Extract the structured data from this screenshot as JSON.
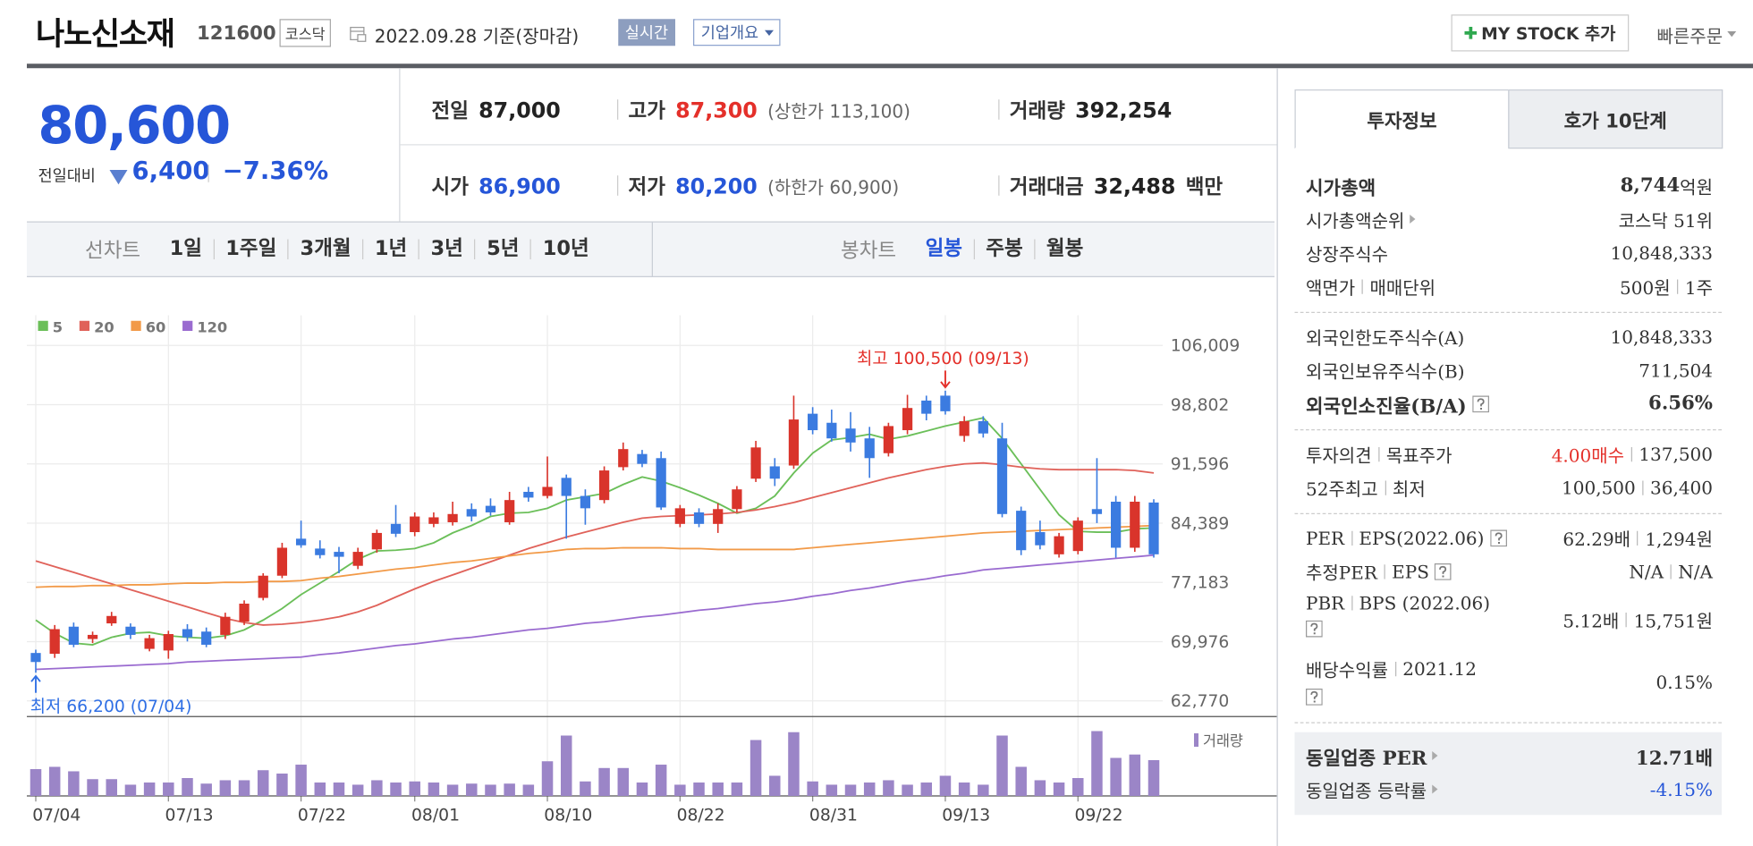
{
  "header": {
    "name": "나노신소재",
    "code": "121600",
    "market": "코스닥",
    "date": "2022.09.28 기준(장마감)",
    "realtime": "실시간",
    "company_info": "기업개요",
    "my_stock": "MY STOCK 추가",
    "quick_order": "빠른주문"
  },
  "price": {
    "current": "80,600",
    "change_label": "전일대비",
    "change": "6,400",
    "rate": "−7.36%"
  },
  "quotes": [
    {
      "label": "전일",
      "value": "87,000",
      "color": "#222222"
    },
    {
      "label": "고가",
      "value": "87,300",
      "color": "#e4302a",
      "limit": "(상한가 113,100)"
    },
    {
      "label": "거래량",
      "value": "392,254",
      "color": "#222222"
    },
    {
      "label": "시가",
      "value": "86,900",
      "color": "#2656d8"
    },
    {
      "label": "저가",
      "value": "80,200",
      "color": "#2656d8",
      "limit": "(하한가 60,900)"
    },
    {
      "label": "거래대금",
      "value": "32,488",
      "color": "#222222",
      "unit": "백만"
    }
  ],
  "chart_tabs": {
    "line_chart": {
      "label": "선차트",
      "periods": [
        "1일",
        "1주일",
        "3개월",
        "1년",
        "3년",
        "5년",
        "10년"
      ]
    },
    "candle_chart": {
      "label": "봉차트",
      "periods": [
        "일봉",
        "주봉",
        "월봉"
      ],
      "active": 0
    }
  },
  "chart_data": {
    "type": "candlestick",
    "categories": [
      "07/04",
      null,
      null,
      null,
      null,
      null,
      null,
      "07/13",
      null,
      null,
      null,
      null,
      null,
      null,
      "07/22",
      null,
      null,
      null,
      null,
      null,
      "08/01",
      null,
      null,
      null,
      null,
      null,
      null,
      "08/10",
      null,
      null,
      null,
      null,
      null,
      null,
      "08/22",
      null,
      null,
      null,
      null,
      null,
      null,
      "08/31",
      null,
      null,
      null,
      null,
      null,
      null,
      "09/13",
      null,
      null,
      null,
      null,
      null,
      null,
      "09/22",
      null,
      null,
      null,
      null
    ],
    "open": [
      68600,
      68500,
      71800,
      70300,
      72200,
      71800,
      69100,
      68900,
      71500,
      71200,
      70800,
      72400,
      75300,
      78000,
      82500,
      81300,
      80900,
      79200,
      81200,
      84300,
      83300,
      84300,
      84500,
      86100,
      86500,
      84500,
      88200,
      87700,
      89900,
      87700,
      87200,
      91200,
      92800,
      92300,
      84300,
      85700,
      84300,
      86100,
      89800,
      91300,
      91400,
      97700,
      96600,
      95900,
      94700,
      92900,
      95700,
      99300,
      99900,
      95000,
      96800,
      94700,
      85900,
      83300,
      80600,
      81000,
      86100,
      87000,
      81400,
      86900
    ],
    "high": [
      69000,
      72000,
      72300,
      71200,
      73600,
      72200,
      70800,
      71300,
      72100,
      71700,
      73500,
      75000,
      78300,
      82000,
      84700,
      82300,
      81500,
      81400,
      83600,
      86600,
      85700,
      85700,
      87000,
      86800,
      87400,
      88200,
      88800,
      92500,
      90300,
      88500,
      91300,
      94200,
      93300,
      93100,
      86600,
      86200,
      86800,
      88900,
      94400,
      92300,
      99900,
      98500,
      98200,
      97900,
      96100,
      96600,
      100000,
      99900,
      100500,
      97400,
      97400,
      96600,
      86400,
      84700,
      83200,
      85100,
      92300,
      87700,
      87700,
      87300
    ],
    "low": [
      66200,
      68000,
      69300,
      69800,
      71900,
      70300,
      68800,
      67900,
      70000,
      69300,
      70300,
      72000,
      75000,
      77700,
      81400,
      80100,
      78300,
      78800,
      80800,
      82700,
      82800,
      83900,
      84100,
      84600,
      85300,
      84200,
      87000,
      87400,
      82500,
      84200,
      86800,
      90800,
      91200,
      86000,
      83900,
      83900,
      83200,
      85700,
      89400,
      88900,
      91000,
      95200,
      94300,
      93100,
      89900,
      92500,
      95200,
      96900,
      97600,
      94300,
      94800,
      85100,
      80500,
      81200,
      80200,
      80600,
      84400,
      80200,
      80900,
      80200
    ],
    "close": [
      67500,
      71500,
      69600,
      70800,
      73100,
      70800,
      70400,
      70900,
      70500,
      69600,
      73000,
      74600,
      78000,
      81400,
      81700,
      80500,
      80300,
      80900,
      83200,
      83100,
      85200,
      85100,
      85500,
      85200,
      85700,
      87200,
      87500,
      88800,
      87700,
      86200,
      90800,
      93400,
      91600,
      86300,
      86200,
      84300,
      86100,
      88500,
      93600,
      89800,
      97000,
      95700,
      94700,
      94200,
      92300,
      96200,
      98400,
      97700,
      98000,
      96800,
      95300,
      85500,
      81100,
      81700,
      82800,
      84700,
      85500,
      81400,
      87000,
      80600
    ],
    "up_color": "#d9342b",
    "down_color": "#3b7be0",
    "ylim": [
      62770,
      106009
    ],
    "yticks": [
      {
        "value": 62770,
        "label": "62,770"
      },
      {
        "value": 69976,
        "label": "69,976"
      },
      {
        "value": 77183,
        "label": "77,183"
      },
      {
        "value": 84389,
        "label": "84,389"
      },
      {
        "value": 91596,
        "label": "91,596"
      },
      {
        "value": 98802,
        "label": "98,802"
      },
      {
        "value": 106009,
        "label": "106,009"
      }
    ],
    "grid": true,
    "moving_averages": [
      {
        "name": "5",
        "color": "#6bbf59",
        "values": [
          72600,
          71000,
          69800,
          69600,
          70500,
          71000,
          71100,
          70700,
          70500,
          70400,
          70700,
          71400,
          72600,
          74000,
          75700,
          77100,
          78500,
          80000,
          81000,
          81100,
          81300,
          82000,
          83200,
          84100,
          85200,
          85600,
          85700,
          86200,
          87200,
          87600,
          88000,
          89100,
          90000,
          89500,
          88700,
          87800,
          86800,
          85600,
          86200,
          87700,
          90500,
          92900,
          94500,
          94800,
          95200,
          94600,
          95000,
          95600,
          96200,
          96700,
          97200,
          94700,
          91600,
          88500,
          85400,
          83400,
          83300,
          83300,
          83700,
          83800
        ]
      },
      {
        "name": "20",
        "color": "#e0625a",
        "values": [
          79800,
          79100,
          78400,
          77700,
          77000,
          76300,
          75600,
          74900,
          74200,
          73500,
          72800,
          72300,
          72000,
          72100,
          72300,
          72600,
          73000,
          73600,
          74400,
          75400,
          76400,
          77300,
          78100,
          78900,
          79700,
          80500,
          81300,
          82000,
          82700,
          83300,
          83900,
          84500,
          85000,
          85200,
          85300,
          85400,
          85500,
          85700,
          86000,
          86400,
          86900,
          87500,
          88100,
          88700,
          89300,
          89900,
          90400,
          90900,
          91300,
          91600,
          91700,
          91500,
          91200,
          91000,
          90900,
          90900,
          90900,
          90900,
          90800,
          90500
        ]
      },
      {
        "name": "60",
        "color": "#f29a48",
        "values": [
          76600,
          76700,
          76700,
          76800,
          76800,
          76900,
          76900,
          77000,
          77100,
          77100,
          77200,
          77200,
          77300,
          77300,
          77400,
          77700,
          77900,
          78200,
          78500,
          78800,
          79000,
          79300,
          79600,
          79800,
          80100,
          80400,
          80700,
          80900,
          81200,
          81300,
          81300,
          81400,
          81400,
          81400,
          81300,
          81300,
          81200,
          81200,
          81200,
          81200,
          81200,
          81400,
          81600,
          81800,
          82000,
          82200,
          82400,
          82600,
          82800,
          83000,
          83200,
          83300,
          83400,
          83500,
          83600,
          83700,
          83800,
          83900,
          84000,
          84100
        ]
      },
      {
        "name": "120",
        "color": "#9a6bd0",
        "values": [
          66600,
          66700,
          66800,
          66900,
          67000,
          67100,
          67200,
          67300,
          67500,
          67600,
          67700,
          67800,
          67900,
          68000,
          68100,
          68400,
          68600,
          68900,
          69200,
          69500,
          69700,
          70000,
          70300,
          70500,
          70800,
          71100,
          71400,
          71600,
          71900,
          72200,
          72400,
          72700,
          73000,
          73200,
          73500,
          73800,
          74000,
          74300,
          74600,
          74800,
          75100,
          75500,
          75800,
          76200,
          76500,
          76900,
          77300,
          77600,
          78000,
          78300,
          78700,
          78900,
          79100,
          79300,
          79500,
          79700,
          79900,
          80100,
          80300,
          80500
        ]
      }
    ],
    "volume": {
      "name": "거래량",
      "color": "#9b85c7",
      "values": [
        294000,
        319000,
        270000,
        184000,
        184000,
        123000,
        147000,
        147000,
        196000,
        135000,
        172000,
        172000,
        282000,
        245000,
        343000,
        147000,
        147000,
        123000,
        172000,
        147000,
        159000,
        147000,
        123000,
        135000,
        123000,
        135000,
        123000,
        380000,
        662000,
        159000,
        306000,
        306000,
        147000,
        343000,
        123000,
        147000,
        147000,
        147000,
        613000,
        221000,
        699000,
        159000,
        123000,
        123000,
        147000,
        172000,
        123000,
        147000,
        221000,
        147000,
        123000,
        662000,
        319000,
        172000,
        147000,
        196000,
        711000,
        417000,
        454000,
        392254
      ]
    },
    "max_label": {
      "text": "최고 100,500 (09/13)",
      "color": "#e4302a"
    },
    "min_label": {
      "text": "최저 66,200 (07/04)",
      "color": "#2f6fe4"
    }
  },
  "invest_panel": {
    "tabs": [
      "투자정보",
      "호가 10단계"
    ],
    "sections": [
      {
        "rows": [
          {
            "label": [
              "시가총액"
            ],
            "value": [
              "8,744"
            ],
            "unit": "억원",
            "bold": true
          },
          {
            "label": [
              "시가총액순위"
            ],
            "arrow": true,
            "value": [
              "코스닥 51위"
            ]
          },
          {
            "label": [
              "상장주식수"
            ],
            "value": [
              "10,848,333"
            ]
          },
          {
            "label": [
              "액면가",
              "매매단위"
            ],
            "value": [
              "500원",
              "1주"
            ]
          }
        ]
      },
      {
        "rows": [
          {
            "label": [
              "외국인한도주식수(A)"
            ],
            "value": [
              "10,848,333"
            ]
          },
          {
            "label": [
              "외국인보유주식수(B)"
            ],
            "value": [
              "711,504"
            ]
          },
          {
            "label": [
              "외국인소진율(B/A)"
            ],
            "help": "inline",
            "value": [
              "6.56%"
            ],
            "bold": true
          }
        ]
      },
      {
        "rows": [
          {
            "label": [
              "투자의견",
              "목표주가"
            ],
            "value": [
              "4.00매수",
              "137,500"
            ],
            "value_color": "#e4302a"
          },
          {
            "label": [
              "52주최고",
              "최저"
            ],
            "value": [
              "100,500",
              "36,400"
            ]
          }
        ]
      },
      {
        "rows": [
          {
            "label": [
              "PER",
              "EPS(2022.06)"
            ],
            "help": "inline",
            "value": [
              "62.29배",
              "1,294원"
            ]
          },
          {
            "label": [
              "추정PER",
              "EPS"
            ],
            "help": "inline",
            "value": [
              "N/A",
              "N/A"
            ]
          },
          {
            "label": [
              "PBR",
              "BPS (2022.06)"
            ],
            "help": "below",
            "value": [
              "5.12배",
              "15,751원"
            ]
          },
          {
            "label": [
              "배당수익률",
              "2021.12"
            ],
            "help": "below",
            "value": [
              "0.15%"
            ]
          }
        ]
      },
      {
        "shaded": true,
        "rows": [
          {
            "label": [
              "동일업종 PER"
            ],
            "arrow": true,
            "bold": true,
            "value": [
              "12.71배"
            ]
          },
          {
            "label": [
              "동일업종 등락률"
            ],
            "arrow": true,
            "value": [
              "-4.15%"
            ],
            "value_color": "#2656d8"
          }
        ]
      }
    ]
  }
}
